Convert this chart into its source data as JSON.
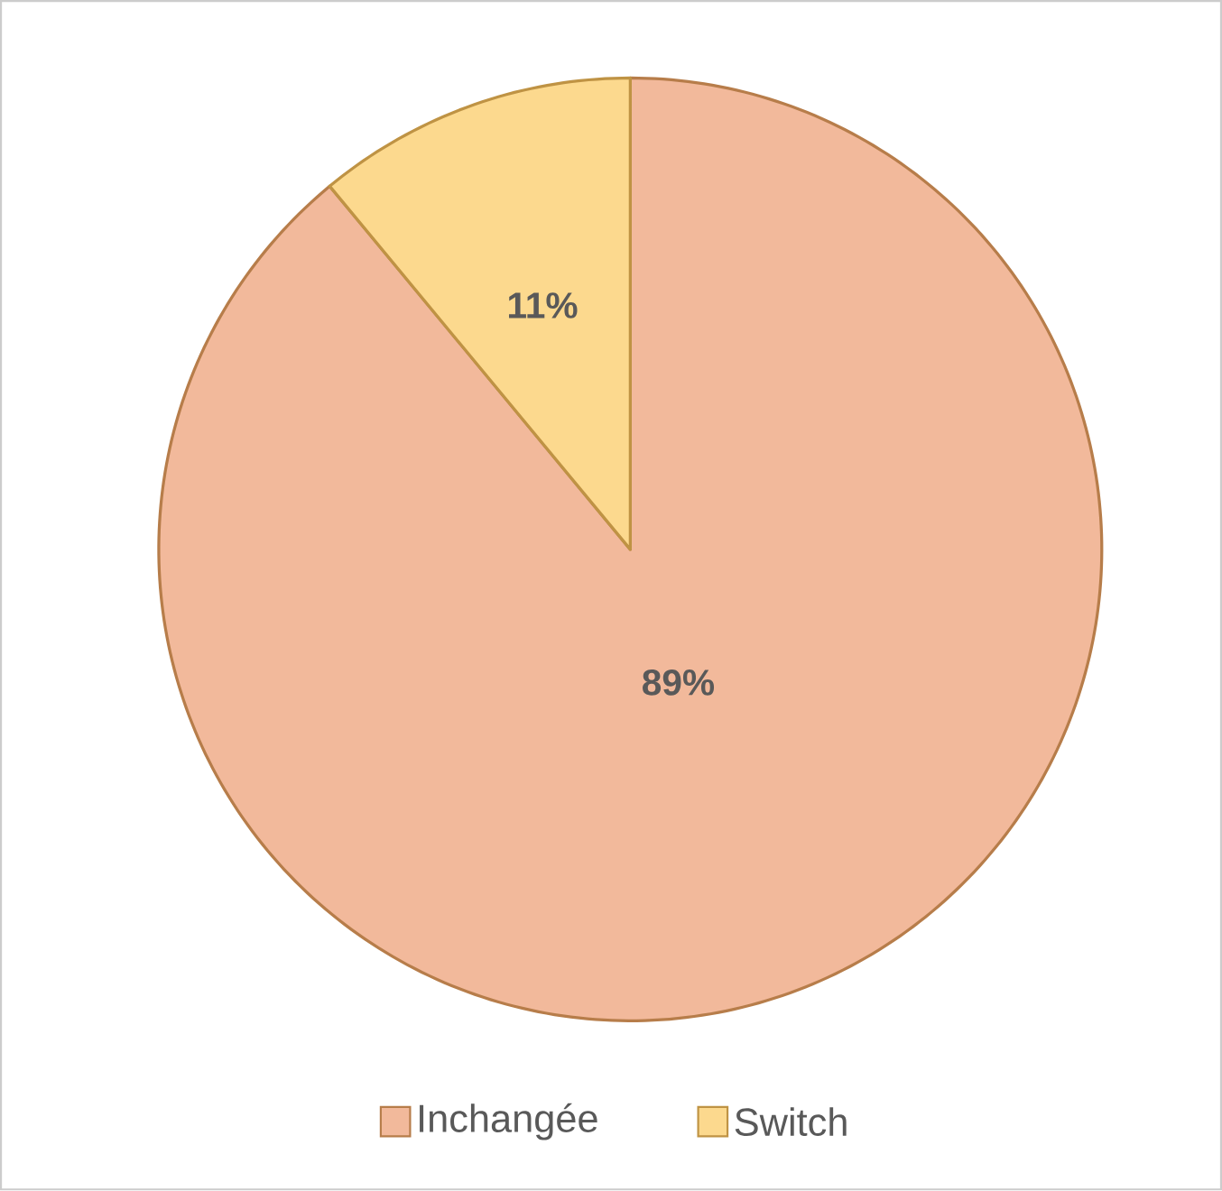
{
  "chart_data": {
    "type": "pie",
    "categories": [
      "Inchangée",
      "Switch"
    ],
    "values": [
      89,
      11
    ],
    "value_labels": [
      "89%",
      "11%"
    ],
    "colors": [
      "#f2b99b",
      "#fcd98e"
    ],
    "legend": "bottom"
  }
}
